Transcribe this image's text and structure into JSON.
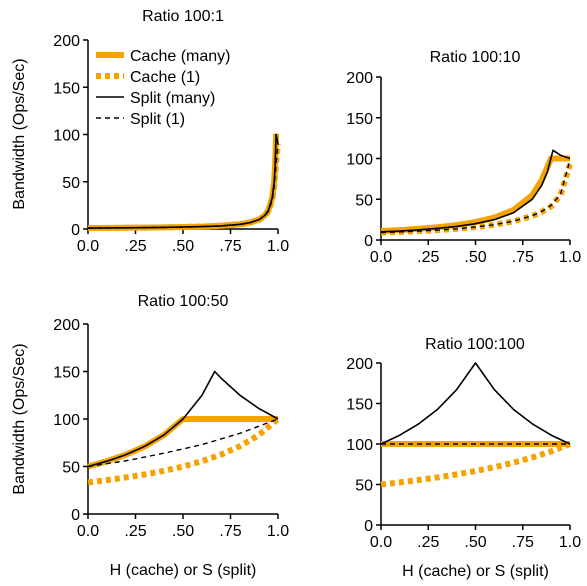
{
  "colors": {
    "cache": "#f5a300",
    "split": "#000000"
  },
  "chart_data": [
    {
      "type": "line",
      "title": "Ratio 100:1",
      "xlabel": "",
      "ylabel": "Bandwidth (Ops/Sec)",
      "xlim": [
        0,
        1
      ],
      "ylim": [
        0,
        200
      ],
      "xticks": [
        "0.0",
        ".25",
        ".50",
        ".75",
        "1.0"
      ],
      "yticks": [
        "0",
        "50",
        "100",
        "150",
        "200"
      ],
      "legend": "top-left",
      "series": [
        {
          "name": "Cache (many)",
          "x": [
            0,
            0.2,
            0.4,
            0.6,
            0.7,
            0.8,
            0.85,
            0.9,
            0.93,
            0.95,
            0.97,
            0.98,
            0.985,
            0.99
          ],
          "y": [
            1.01,
            1.26,
            1.68,
            2.52,
            3.36,
            5.03,
            6.71,
            10.1,
            14.4,
            20.2,
            33.7,
            50.5,
            67.3,
            101
          ]
        },
        {
          "name": "Cache (1)",
          "x": [
            0,
            0.2,
            0.4,
            0.6,
            0.7,
            0.8,
            0.85,
            0.9,
            0.93,
            0.95,
            0.97,
            0.98,
            0.99,
            1.0
          ],
          "y": [
            1.0,
            1.25,
            1.66,
            2.49,
            3.31,
            4.95,
            6.58,
            9.8,
            13.9,
            19.0,
            30.9,
            45.0,
            70.0,
            90.0
          ]
        },
        {
          "name": "Split (many)",
          "x": [
            0,
            0.2,
            0.4,
            0.6,
            0.7,
            0.8,
            0.85,
            0.9,
            0.93,
            0.95,
            0.97,
            0.98,
            0.985,
            0.99,
            1.0
          ],
          "y": [
            1.0,
            1.25,
            1.67,
            2.5,
            3.33,
            5.0,
            6.67,
            10.0,
            14.3,
            20.0,
            33.3,
            50.0,
            66.7,
            100,
            90
          ]
        },
        {
          "name": "Split (1)",
          "x": [
            0,
            0.2,
            0.4,
            0.6,
            0.7,
            0.8,
            0.85,
            0.9,
            0.93,
            0.95,
            0.97,
            0.98,
            0.99,
            1.0
          ],
          "y": [
            1.0,
            1.24,
            1.65,
            2.47,
            3.29,
            4.9,
            6.5,
            9.7,
            13.7,
            18.8,
            30.5,
            44.5,
            69.0,
            90.0
          ]
        }
      ]
    },
    {
      "type": "line",
      "title": "Ratio 100:10",
      "xlabel": "",
      "ylabel": "",
      "xlim": [
        0,
        1
      ],
      "ylim": [
        0,
        200
      ],
      "xticks": [
        "0.0",
        ".25",
        ".50",
        ".75",
        "1.0"
      ],
      "yticks": [
        "0",
        "50",
        "100",
        "150",
        "200"
      ],
      "series": [
        {
          "name": "Cache (many)",
          "x": [
            0,
            0.1,
            0.2,
            0.3,
            0.4,
            0.5,
            0.6,
            0.7,
            0.8,
            0.85,
            0.9,
            0.92,
            1.0
          ],
          "y": [
            11.0,
            12.2,
            13.8,
            15.7,
            18.3,
            22.0,
            27.5,
            36.7,
            55.0,
            73.3,
            100,
            100,
            100
          ]
        },
        {
          "name": "Cache (1)",
          "x": [
            0,
            0.1,
            0.2,
            0.3,
            0.4,
            0.5,
            0.6,
            0.7,
            0.8,
            0.85,
            0.9,
            0.95,
            1.0
          ],
          "y": [
            9.1,
            9.9,
            10.9,
            12.2,
            13.7,
            15.8,
            18.7,
            22.9,
            29.4,
            34.3,
            41.3,
            55.0,
            93.0
          ]
        },
        {
          "name": "Split (many)",
          "x": [
            0,
            0.1,
            0.2,
            0.3,
            0.4,
            0.5,
            0.6,
            0.7,
            0.8,
            0.85,
            0.88,
            0.91,
            0.95,
            1.0
          ],
          "y": [
            10.0,
            11.1,
            12.5,
            14.3,
            16.7,
            20.0,
            25.0,
            33.3,
            50.0,
            66.7,
            83.3,
            110,
            104,
            100
          ]
        },
        {
          "name": "Split (1)",
          "x": [
            0,
            0.1,
            0.2,
            0.3,
            0.4,
            0.5,
            0.6,
            0.7,
            0.8,
            0.85,
            0.9,
            0.95,
            1.0
          ],
          "y": [
            9.1,
            9.9,
            10.9,
            12.2,
            13.8,
            15.9,
            18.8,
            23.1,
            29.8,
            35.0,
            42.5,
            56.0,
            98.0
          ]
        }
      ]
    },
    {
      "type": "line",
      "title": "Ratio 100:50",
      "xlabel": "H (cache) or S (split)",
      "ylabel": "Bandwidth (Ops/Sec)",
      "xlim": [
        0,
        1
      ],
      "ylim": [
        0,
        200
      ],
      "xticks": [
        "0.0",
        ".25",
        ".50",
        ".75",
        "1.0"
      ],
      "yticks": [
        "0",
        "50",
        "100",
        "150",
        "200"
      ],
      "series": [
        {
          "name": "Cache (many)",
          "x": [
            0,
            0.1,
            0.2,
            0.3,
            0.4,
            0.5,
            1.0
          ],
          "y": [
            50.0,
            55.6,
            62.5,
            71.4,
            83.3,
            100,
            100
          ]
        },
        {
          "name": "Cache (1)",
          "x": [
            0,
            0.1,
            0.2,
            0.3,
            0.4,
            0.5,
            0.6,
            0.7,
            0.8,
            0.9,
            1.0
          ],
          "y": [
            33.3,
            35.7,
            38.5,
            41.7,
            45.5,
            50.0,
            55.6,
            62.5,
            71.4,
            83.3,
            100
          ]
        },
        {
          "name": "Split (many)",
          "x": [
            0,
            0.1,
            0.2,
            0.3,
            0.4,
            0.5,
            0.6,
            0.667,
            0.7,
            0.8,
            0.9,
            1.0
          ],
          "y": [
            50.0,
            55.6,
            62.5,
            71.4,
            83.3,
            100,
            125,
            150,
            143,
            125,
            111,
            100
          ]
        },
        {
          "name": "Split (1)",
          "x": [
            0,
            0.2,
            0.4,
            0.6,
            0.8,
            1.0
          ],
          "y": [
            50.0,
            56.0,
            64.0,
            73.0,
            85.0,
            100
          ]
        }
      ]
    },
    {
      "type": "line",
      "title": "Ratio 100:100",
      "xlabel": "H (cache) or S (split)",
      "ylabel": "",
      "xlim": [
        0,
        1
      ],
      "ylim": [
        0,
        200
      ],
      "xticks": [
        "0.0",
        ".25",
        ".50",
        ".75",
        "1.0"
      ],
      "yticks": [
        "0",
        "50",
        "100",
        "150",
        "200"
      ],
      "series": [
        {
          "name": "Cache (many)",
          "x": [
            0,
            1.0
          ],
          "y": [
            100,
            100
          ]
        },
        {
          "name": "Cache (1)",
          "x": [
            0,
            0.1,
            0.2,
            0.3,
            0.4,
            0.5,
            0.6,
            0.7,
            0.8,
            0.9,
            1.0
          ],
          "y": [
            50.0,
            52.6,
            55.6,
            58.8,
            62.5,
            66.7,
            71.4,
            76.9,
            83.3,
            90.9,
            100
          ]
        },
        {
          "name": "Split (many)",
          "x": [
            0,
            0.1,
            0.2,
            0.3,
            0.4,
            0.5,
            0.6,
            0.7,
            0.8,
            0.9,
            1.0
          ],
          "y": [
            100,
            111,
            125,
            143,
            167,
            200,
            167,
            143,
            125,
            111,
            100
          ]
        },
        {
          "name": "Split (1)",
          "x": [
            0,
            1.0
          ],
          "y": [
            100,
            100
          ]
        }
      ]
    }
  ]
}
